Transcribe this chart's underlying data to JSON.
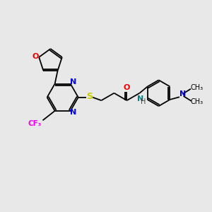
{
  "background_color": "#e8e8e8",
  "bond_color": "#000000",
  "atom_colors": {
    "N": "#0000ee",
    "O": "#ee0000",
    "S": "#cccc00",
    "F": "#ee00ee",
    "NH": "#008080",
    "NMe": "#0000cc"
  },
  "figsize": [
    3.0,
    3.0
  ],
  "dpi": 100,
  "xlim": [
    0,
    12
  ],
  "ylim": [
    0,
    12
  ]
}
